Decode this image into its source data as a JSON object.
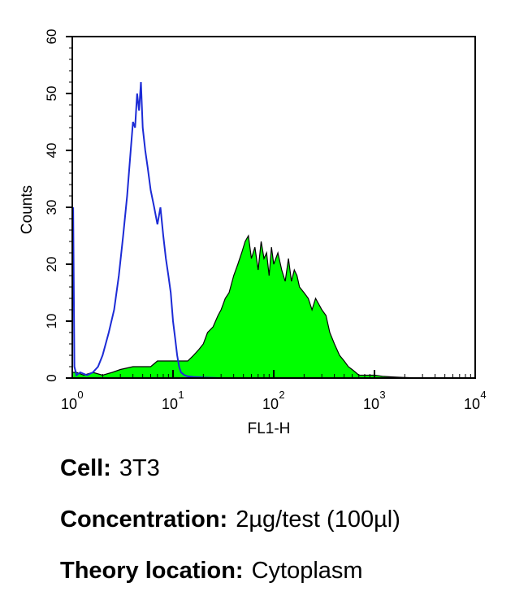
{
  "chart_data": {
    "type": "area",
    "xlabel": "FL1-H",
    "ylabel": "Counts",
    "xscale": "log",
    "xlim": [
      1,
      10000
    ],
    "ylim": [
      0,
      60
    ],
    "x_ticks": [
      {
        "base": "10",
        "exp": "0"
      },
      {
        "base": "10",
        "exp": "1"
      },
      {
        "base": "10",
        "exp": "2"
      },
      {
        "base": "10",
        "exp": "3"
      },
      {
        "base": "10",
        "exp": "4"
      }
    ],
    "y_ticks": [
      "0",
      "10",
      "20",
      "30",
      "40",
      "50",
      "60"
    ],
    "grid": false,
    "series": [
      {
        "style": "outline",
        "color": "#1c2bd6",
        "x": [
          1.02,
          1.05,
          1.1,
          1.2,
          1.4,
          1.6,
          1.8,
          2.0,
          2.3,
          2.6,
          2.9,
          3.2,
          3.5,
          3.8,
          4.0,
          4.2,
          4.4,
          4.6,
          4.8,
          5.0,
          5.3,
          5.6,
          6.0,
          6.5,
          7.0,
          7.5,
          8.0,
          8.5,
          9.0,
          9.5,
          10.0,
          10.5,
          11.0,
          11.5,
          12.0,
          13.0,
          14.0,
          16.0,
          20.0,
          30.0,
          50.0,
          100.0,
          1000.0,
          9500.0
        ],
        "y": [
          30,
          2,
          0.5,
          1,
          0.5,
          1,
          2,
          4,
          8,
          12,
          18,
          25,
          32,
          40,
          45,
          44,
          50,
          47,
          52,
          44,
          40,
          37,
          33,
          30,
          27,
          30,
          25,
          21,
          18,
          15,
          10,
          7,
          4,
          2,
          1,
          0.5,
          0.3,
          0.2,
          0.1,
          0,
          0,
          0,
          0,
          0
        ]
      },
      {
        "style": "filled",
        "color": "#00ff00",
        "edge_color": "#000000",
        "x": [
          1.02,
          1.1,
          1.3,
          1.6,
          2.0,
          2.5,
          3.0,
          4.0,
          5.0,
          6.0,
          7.0,
          8.0,
          9.0,
          10.0,
          12.0,
          14.0,
          16.0,
          18.0,
          20.0,
          22.0,
          25.0,
          28.0,
          30.0,
          33.0,
          36.0,
          40.0,
          44.0,
          48.0,
          52.0,
          56.0,
          60.0,
          65.0,
          70.0,
          75.0,
          80.0,
          85.0,
          90.0,
          95.0,
          100.0,
          110.0,
          120.0,
          130.0,
          140.0,
          150.0,
          160.0,
          170.0,
          180.0,
          200.0,
          220.0,
          240.0,
          260.0,
          280.0,
          300.0,
          330.0,
          360.0,
          400.0,
          450.0,
          500.0,
          550.0,
          600.0,
          650.0,
          700.0,
          800.0,
          900.0,
          1000.0,
          1200.0,
          1500.0,
          2000.0,
          3000.0,
          5000.0,
          9500.0
        ],
        "y": [
          1,
          1,
          0.5,
          1,
          0.5,
          1,
          1.5,
          2,
          2,
          2,
          3,
          3,
          3,
          3,
          3,
          3,
          4,
          5,
          6,
          8,
          9,
          11,
          12,
          14,
          15,
          18,
          20,
          22,
          24,
          25,
          21,
          23,
          19,
          24,
          21,
          22,
          18,
          23,
          20,
          22,
          19,
          17,
          21,
          17,
          19,
          18,
          16,
          15,
          14,
          12,
          14,
          13,
          12,
          11,
          8,
          6,
          4,
          3,
          2,
          1.5,
          1,
          0.5,
          0.5,
          0.5,
          0.5,
          0.3,
          0.2,
          0.1,
          0,
          0,
          0
        ]
      }
    ]
  },
  "captions": [
    {
      "key": "Cell:",
      "value": "3T3"
    },
    {
      "key": "Concentration:",
      "value": "2µg/test (100µl)"
    },
    {
      "key": "Theory location:",
      "value": "Cytoplasm"
    }
  ]
}
